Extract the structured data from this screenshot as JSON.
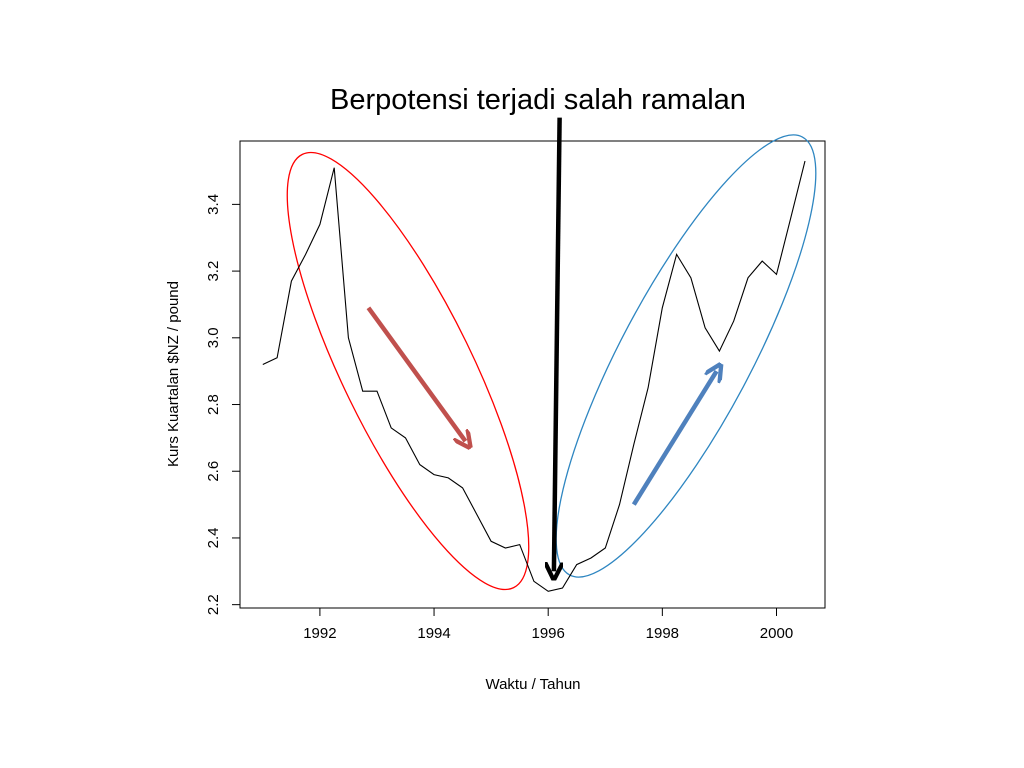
{
  "slide": {
    "title": "Berpotensi terjadi salah ramalan"
  },
  "chart_data": {
    "type": "line",
    "title": "",
    "xlabel": "Waktu / Tahun",
    "ylabel": "Kurs Kuartalan $NZ / pound",
    "xlim": [
      1990.6,
      2000.85
    ],
    "ylim": [
      2.19,
      3.59
    ],
    "x_ticks": [
      1992,
      1994,
      1996,
      1998,
      2000
    ],
    "x_tick_labels": [
      "1992",
      "1994",
      "1996",
      "1998",
      "2000"
    ],
    "y_ticks": [
      2.2,
      2.4,
      2.6,
      2.8,
      3.0,
      3.2,
      3.4
    ],
    "y_tick_labels": [
      "2.2",
      "2.4",
      "2.6",
      "2.8",
      "3.0",
      "3.2",
      "3.4"
    ],
    "grid": false,
    "line_color": "#000000",
    "series": [
      {
        "x": [
          1991.0,
          1991.25,
          1991.5,
          1991.75,
          1992.0,
          1992.25,
          1992.5,
          1992.75,
          1993.0,
          1993.25,
          1993.5,
          1993.75,
          1994.0,
          1994.25,
          1994.5,
          1994.75,
          1995.0,
          1995.25,
          1995.5,
          1995.75,
          1996.0,
          1996.25,
          1996.5,
          1996.75,
          1997.0,
          1997.25,
          1997.5,
          1997.75,
          1998.0,
          1998.25,
          1998.5,
          1998.75,
          1999.0,
          1999.25,
          1999.5,
          1999.75,
          2000.0,
          2000.25,
          2000.5
        ],
        "y": [
          2.92,
          2.94,
          3.17,
          3.25,
          3.34,
          3.51,
          3.0,
          2.84,
          2.84,
          2.73,
          2.7,
          2.62,
          2.59,
          2.58,
          2.55,
          2.47,
          2.39,
          2.37,
          2.38,
          2.27,
          2.24,
          2.25,
          2.32,
          2.34,
          2.37,
          2.5,
          2.68,
          2.85,
          3.09,
          3.25,
          3.18,
          3.03,
          2.96,
          3.05,
          3.18,
          3.23,
          3.19,
          3.36,
          3.53
        ]
      }
    ],
    "annotations": {
      "down_arrow": {
        "from": [
          1992.85,
          3.09
        ],
        "to": [
          1994.55,
          2.69
        ],
        "color": "#c0504d"
      },
      "up_arrow": {
        "from": [
          1997.5,
          2.5
        ],
        "to": [
          1998.95,
          2.9
        ],
        "color": "#4f81bd"
      },
      "forecast_arrow": {
        "from": [
          1996.2,
          3.66
        ],
        "to": [
          1996.1,
          2.3
        ],
        "color": "#000000"
      },
      "red_ellipse": {
        "center": [
          1993.8,
          2.89
        ],
        "color": "#ff0000"
      },
      "blue_ellipse": {
        "center": [
          1998.55,
          2.91
        ],
        "color": "#2e86c1"
      }
    }
  }
}
